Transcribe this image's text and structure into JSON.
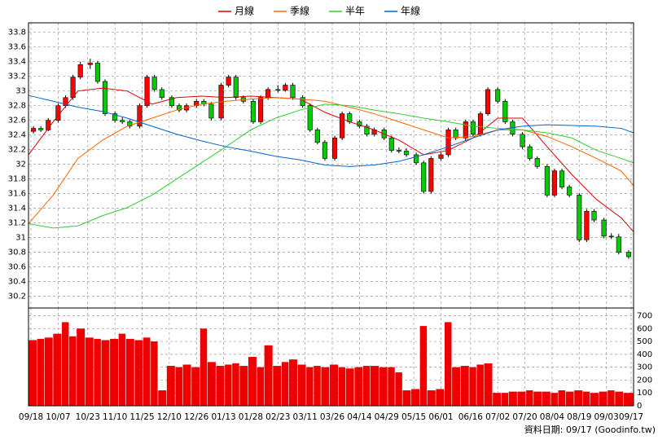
{
  "chart_data": [
    {
      "type": "candlestick",
      "legend": "top",
      "grid": true,
      "x": [
        2,
        5,
        8,
        12,
        15,
        18,
        21,
        25,
        28,
        31,
        35,
        38,
        41,
        45,
        48,
        51,
        54,
        58,
        61,
        64,
        68,
        71,
        74,
        78,
        81,
        84,
        87,
        91,
        94,
        97,
        101,
        104,
        107,
        111,
        114,
        117,
        120,
        124,
        127,
        130,
        134,
        137,
        140,
        144,
        147,
        150,
        153,
        157,
        160,
        163,
        167,
        170,
        173,
        177,
        180,
        183,
        186,
        190,
        193,
        196,
        200,
        203,
        206,
        210,
        213,
        216,
        219,
        223,
        226,
        229,
        233,
        236,
        239,
        243
      ],
      "ohlc": [
        [
          32.45,
          32.52,
          32.42,
          32.49
        ],
        [
          32.49,
          32.52,
          32.44,
          32.47
        ],
        [
          32.47,
          32.63,
          32.45,
          32.6
        ],
        [
          32.6,
          32.83,
          32.57,
          32.8
        ],
        [
          32.8,
          32.94,
          32.77,
          32.91
        ],
        [
          32.91,
          33.22,
          32.88,
          33.19
        ],
        [
          33.19,
          33.4,
          33.16,
          33.36
        ],
        [
          33.36,
          33.44,
          33.3,
          33.38
        ],
        [
          33.38,
          33.41,
          33.1,
          33.13
        ],
        [
          33.13,
          33.16,
          32.66,
          32.69
        ],
        [
          32.69,
          32.72,
          32.57,
          32.6
        ],
        [
          32.6,
          32.64,
          32.55,
          32.58
        ],
        [
          32.58,
          32.61,
          32.49,
          32.52
        ],
        [
          32.52,
          32.83,
          32.49,
          32.8
        ],
        [
          32.8,
          33.22,
          32.77,
          33.19
        ],
        [
          33.19,
          33.22,
          32.99,
          33.02
        ],
        [
          33.02,
          33.05,
          32.88,
          32.91
        ],
        [
          32.91,
          32.94,
          32.77,
          32.8
        ],
        [
          32.8,
          32.83,
          32.71,
          32.74
        ],
        [
          32.74,
          32.83,
          32.71,
          32.8
        ],
        [
          32.8,
          32.89,
          32.77,
          32.86
        ],
        [
          32.86,
          32.89,
          32.79,
          32.82
        ],
        [
          32.82,
          32.85,
          32.6,
          32.63
        ],
        [
          32.63,
          33.11,
          32.6,
          33.08
        ],
        [
          33.08,
          33.22,
          33.05,
          33.19
        ],
        [
          33.19,
          33.22,
          32.88,
          32.91
        ],
        [
          32.91,
          32.94,
          32.83,
          32.86
        ],
        [
          32.86,
          32.89,
          32.55,
          32.58
        ],
        [
          32.58,
          32.94,
          32.55,
          32.91
        ],
        [
          32.91,
          33.05,
          32.88,
          33.02
        ],
        [
          33.02,
          33.08,
          32.98,
          33.01
        ],
        [
          33.01,
          33.11,
          32.99,
          33.08
        ],
        [
          33.08,
          33.11,
          32.88,
          32.91
        ],
        [
          32.91,
          32.94,
          32.77,
          32.8
        ],
        [
          32.8,
          32.83,
          32.44,
          32.47
        ],
        [
          32.47,
          32.5,
          32.27,
          32.3
        ],
        [
          32.3,
          32.33,
          32.05,
          32.08
        ],
        [
          32.08,
          32.39,
          32.05,
          32.36
        ],
        [
          32.36,
          32.72,
          32.33,
          32.69
        ],
        [
          32.69,
          32.72,
          32.55,
          32.58
        ],
        [
          32.58,
          32.61,
          32.49,
          32.52
        ],
        [
          32.52,
          32.55,
          32.38,
          32.41
        ],
        [
          32.41,
          32.5,
          32.38,
          32.47
        ],
        [
          32.47,
          32.5,
          32.33,
          32.36
        ],
        [
          32.36,
          32.39,
          32.16,
          32.19
        ],
        [
          32.19,
          32.23,
          32.15,
          32.18
        ],
        [
          32.18,
          32.22,
          32.1,
          32.13
        ],
        [
          32.13,
          32.16,
          31.99,
          32.02
        ],
        [
          32.02,
          32.05,
          31.6,
          31.63
        ],
        [
          31.63,
          32.11,
          31.6,
          32.08
        ],
        [
          32.08,
          32.16,
          32.05,
          32.13
        ],
        [
          32.13,
          32.5,
          32.1,
          32.47
        ],
        [
          32.47,
          32.5,
          32.33,
          32.36
        ],
        [
          32.36,
          32.61,
          32.33,
          32.58
        ],
        [
          32.58,
          32.61,
          32.38,
          32.41
        ],
        [
          32.41,
          32.72,
          32.38,
          32.69
        ],
        [
          32.69,
          33.05,
          32.66,
          33.02
        ],
        [
          33.02,
          33.05,
          32.83,
          32.86
        ],
        [
          32.86,
          32.89,
          32.55,
          32.58
        ],
        [
          32.58,
          32.61,
          32.38,
          32.41
        ],
        [
          32.41,
          32.44,
          32.21,
          32.24
        ],
        [
          32.24,
          32.27,
          32.05,
          32.08
        ],
        [
          32.08,
          32.11,
          31.94,
          31.97
        ],
        [
          31.97,
          32.0,
          31.55,
          31.58
        ],
        [
          31.58,
          31.94,
          31.55,
          31.91
        ],
        [
          31.91,
          31.94,
          31.66,
          31.69
        ],
        [
          31.69,
          31.72,
          31.55,
          31.58
        ],
        [
          31.58,
          31.61,
          30.94,
          30.97
        ],
        [
          30.97,
          31.39,
          30.94,
          31.36
        ],
        [
          31.36,
          31.39,
          31.21,
          31.24
        ],
        [
          31.24,
          31.27,
          30.99,
          31.02
        ],
        [
          31.02,
          31.06,
          30.98,
          31.01
        ],
        [
          31.01,
          31.05,
          30.77,
          30.8
        ],
        [
          30.8,
          30.83,
          30.71,
          30.74
        ]
      ],
      "up_color": "#ff0000",
      "down_color": "#00cc00",
      "series": [
        {
          "name": "月線",
          "color": "#dd0000",
          "x": [
            0,
            10,
            20,
            30,
            40,
            50,
            60,
            70,
            80,
            90,
            100,
            110,
            120,
            130,
            140,
            150,
            160,
            170,
            180,
            190,
            200,
            210,
            220,
            230,
            240,
            245
          ],
          "values": [
            32.13,
            32.58,
            33.0,
            33.04,
            33.0,
            32.82,
            32.91,
            32.93,
            32.91,
            32.93,
            32.91,
            32.89,
            32.71,
            32.58,
            32.47,
            32.33,
            32.13,
            32.19,
            32.36,
            32.63,
            32.63,
            32.24,
            31.86,
            31.52,
            31.27,
            31.08
          ]
        },
        {
          "name": "季線",
          "color": "#ff6600",
          "x": [
            0,
            10,
            20,
            30,
            40,
            50,
            60,
            70,
            80,
            90,
            100,
            110,
            120,
            130,
            140,
            150,
            160,
            170,
            180,
            190,
            200,
            210,
            220,
            230,
            240,
            245
          ],
          "values": [
            31.19,
            31.58,
            32.08,
            32.33,
            32.52,
            32.63,
            32.74,
            32.82,
            32.86,
            32.89,
            32.91,
            32.89,
            32.86,
            32.78,
            32.69,
            32.58,
            32.47,
            32.36,
            32.38,
            32.47,
            32.47,
            32.38,
            32.24,
            32.08,
            31.91,
            31.71
          ]
        },
        {
          "name": "半年",
          "color": "#33cc33",
          "x": [
            0,
            10,
            20,
            30,
            40,
            50,
            60,
            70,
            80,
            90,
            100,
            110,
            120,
            130,
            140,
            150,
            160,
            170,
            180,
            190,
            200,
            210,
            220,
            230,
            240,
            245
          ],
          "values": [
            31.19,
            31.13,
            31.16,
            31.3,
            31.41,
            31.58,
            31.8,
            32.02,
            32.24,
            32.47,
            32.63,
            32.74,
            32.82,
            32.8,
            32.74,
            32.69,
            32.63,
            32.58,
            32.52,
            32.49,
            32.47,
            32.43,
            32.36,
            32.19,
            32.08,
            32.02
          ]
        },
        {
          "name": "年線",
          "color": "#0066cc",
          "x": [
            0,
            10,
            20,
            30,
            40,
            50,
            60,
            70,
            80,
            90,
            100,
            110,
            120,
            130,
            140,
            150,
            160,
            170,
            180,
            190,
            200,
            210,
            220,
            230,
            240,
            245
          ],
          "values": [
            32.94,
            32.86,
            32.78,
            32.72,
            32.63,
            32.52,
            32.41,
            32.32,
            32.24,
            32.18,
            32.11,
            32.06,
            31.99,
            31.97,
            31.99,
            32.04,
            32.13,
            32.24,
            32.36,
            32.47,
            32.52,
            32.54,
            32.53,
            32.52,
            32.49,
            32.43
          ]
        }
      ],
      "xlim": [
        0,
        245
      ],
      "ylim": [
        30.04,
        33.93
      ],
      "yticks": [
        30.2,
        30.4,
        30.6,
        30.8,
        31,
        31.2,
        31.4,
        31.6,
        31.8,
        32,
        32.2,
        32.4,
        32.6,
        32.8,
        33,
        33.2,
        33.4,
        33.6,
        33.8
      ]
    },
    {
      "type": "bar",
      "grid": true,
      "color": "#ee0000",
      "x": [
        2,
        5,
        8,
        12,
        15,
        18,
        21,
        25,
        28,
        31,
        35,
        38,
        41,
        45,
        48,
        51,
        54,
        58,
        61,
        64,
        68,
        71,
        74,
        78,
        81,
        84,
        87,
        91,
        94,
        97,
        101,
        104,
        107,
        111,
        114,
        117,
        120,
        124,
        127,
        130,
        134,
        137,
        140,
        144,
        147,
        150,
        153,
        157,
        160,
        163,
        167,
        170,
        173,
        177,
        180,
        183,
        186,
        190,
        193,
        196,
        200,
        203,
        206,
        210,
        213,
        216,
        219,
        223,
        226,
        229,
        233,
        236,
        239,
        243
      ],
      "values": [
        510,
        520,
        530,
        560,
        650,
        540,
        600,
        530,
        520,
        510,
        520,
        560,
        520,
        510,
        530,
        500,
        120,
        310,
        300,
        320,
        300,
        600,
        340,
        310,
        320,
        330,
        310,
        380,
        300,
        470,
        310,
        340,
        360,
        320,
        300,
        310,
        300,
        320,
        300,
        290,
        300,
        310,
        310,
        300,
        300,
        260,
        120,
        130,
        620,
        120,
        130,
        650,
        300,
        310,
        300,
        320,
        330,
        100,
        100,
        110,
        110,
        120,
        110,
        110,
        100,
        120,
        110,
        120,
        110,
        100,
        110,
        120,
        110,
        100
      ],
      "xlim": [
        0,
        245
      ],
      "ylim": [
        0,
        760
      ],
      "yticks": [
        0,
        100,
        200,
        300,
        400,
        500,
        600,
        700
      ],
      "xticks": [
        {
          "value": 1,
          "label": "09/18"
        },
        {
          "value": 12,
          "label": "10/07"
        },
        {
          "value": 24,
          "label": "10/23"
        },
        {
          "value": 35,
          "label": "11/10"
        },
        {
          "value": 46,
          "label": "11/25"
        },
        {
          "value": 57,
          "label": "12/10"
        },
        {
          "value": 68,
          "label": "12/26"
        },
        {
          "value": 79,
          "label": "01/13"
        },
        {
          "value": 90,
          "label": "01/28"
        },
        {
          "value": 101,
          "label": "02/23"
        },
        {
          "value": 112,
          "label": "03/11"
        },
        {
          "value": 123,
          "label": "03/26"
        },
        {
          "value": 134,
          "label": "04/14"
        },
        {
          "value": 145,
          "label": "04/29"
        },
        {
          "value": 156,
          "label": "05/15"
        },
        {
          "value": 167,
          "label": "06/01"
        },
        {
          "value": 179,
          "label": "06/16"
        },
        {
          "value": 190,
          "label": "07/02"
        },
        {
          "value": 201,
          "label": "07/20"
        },
        {
          "value": 212,
          "label": "08/04"
        },
        {
          "value": 223,
          "label": "08/19"
        },
        {
          "value": 234,
          "label": "09/03"
        },
        {
          "value": 244,
          "label": "09/17"
        }
      ],
      "footnote": "資料日期: 09/17 (Goodinfo.tw)"
    }
  ]
}
